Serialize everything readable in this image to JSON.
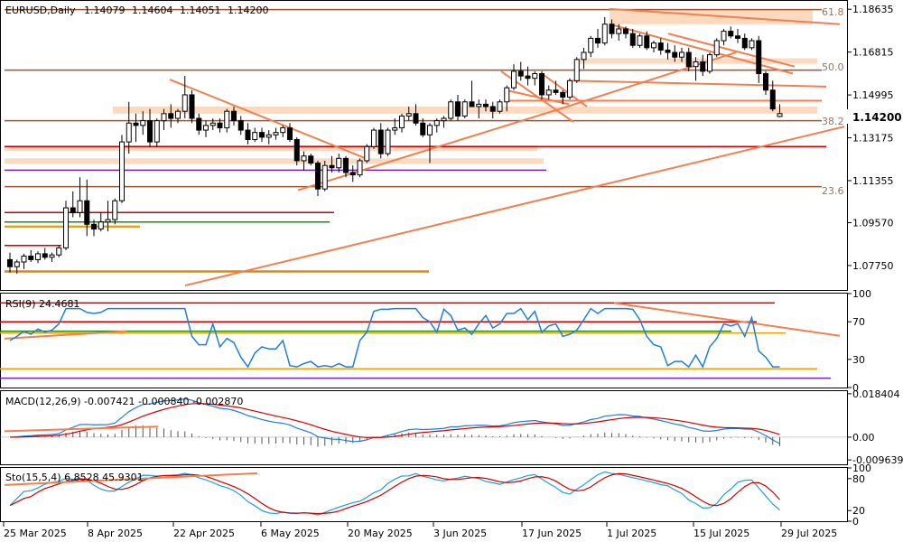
{
  "chart_data": [
    {
      "type": "candlestick",
      "header": {
        "symbol": "EURUSD,Daily",
        "open": "1.14079",
        "high": "1.14604",
        "low": "1.14051",
        "close": "1.14200"
      },
      "y_ticks": [
        "1.18635",
        "1.16815",
        "1.14995",
        "1.13175",
        "1.11355",
        "1.09570",
        "1.07750"
      ],
      "y_range": [
        1.0675,
        1.1895
      ],
      "current_price": "1.14200",
      "fib_labels": [
        "61.8",
        "50.0",
        "38.2",
        "23.6"
      ],
      "x_labels": [
        "25 Mar 2025",
        "8 Apr 2025",
        "22 Apr 2025",
        "6 May 2025",
        "20 May 2025",
        "3 Jun 2025",
        "17 Jun 2025",
        "1 Jul 2025",
        "15 Jul 2025",
        "29 Jul 2025"
      ],
      "candles": [
        [
          1.08,
          1.083,
          1.0745,
          1.077
        ],
        [
          1.077,
          1.08,
          1.074,
          1.079
        ],
        [
          1.079,
          1.0825,
          1.076,
          1.0815
        ],
        [
          1.0815,
          1.084,
          1.079,
          1.08
        ],
        [
          1.08,
          1.0835,
          1.0785,
          1.0825
        ],
        [
          1.0825,
          1.085,
          1.08,
          1.081
        ],
        [
          1.081,
          1.083,
          1.079,
          1.082
        ],
        [
          1.082,
          1.086,
          1.081,
          1.085
        ],
        [
          1.085,
          1.105,
          1.084,
          1.102
        ],
        [
          1.102,
          1.109,
          1.098,
          1.1
        ],
        [
          1.1,
          1.115,
          1.098,
          1.105
        ],
        [
          1.105,
          1.114,
          1.09,
          1.095
        ],
        [
          1.095,
          1.097,
          1.09,
          1.093
        ],
        [
          1.093,
          1.1,
          1.092,
          1.096
        ],
        [
          1.096,
          1.105,
          1.092,
          1.097
        ],
        [
          1.097,
          1.106,
          1.095,
          1.105
        ],
        [
          1.105,
          1.133,
          1.104,
          1.13
        ],
        [
          1.13,
          1.147,
          1.125,
          1.138
        ],
        [
          1.138,
          1.142,
          1.13,
          1.137
        ],
        [
          1.137,
          1.143,
          1.133,
          1.139
        ],
        [
          1.139,
          1.144,
          1.128,
          1.13
        ],
        [
          1.13,
          1.14,
          1.128,
          1.139
        ],
        [
          1.139,
          1.144,
          1.135,
          1.142
        ],
        [
          1.142,
          1.146,
          1.136,
          1.14
        ],
        [
          1.14,
          1.144,
          1.138,
          1.143
        ],
        [
          1.143,
          1.158,
          1.14,
          1.15
        ],
        [
          1.15,
          1.152,
          1.138,
          1.14
        ],
        [
          1.14,
          1.142,
          1.133,
          1.135
        ],
        [
          1.135,
          1.139,
          1.132,
          1.137
        ],
        [
          1.137,
          1.14,
          1.135,
          1.138
        ],
        [
          1.138,
          1.14,
          1.134,
          1.136
        ],
        [
          1.136,
          1.144,
          1.134,
          1.143
        ],
        [
          1.143,
          1.145,
          1.137,
          1.139
        ],
        [
          1.139,
          1.141,
          1.133,
          1.135
        ],
        [
          1.135,
          1.138,
          1.129,
          1.131
        ],
        [
          1.131,
          1.136,
          1.13,
          1.134
        ],
        [
          1.134,
          1.136,
          1.13,
          1.132
        ],
        [
          1.132,
          1.135,
          1.129,
          1.133
        ],
        [
          1.133,
          1.136,
          1.131,
          1.134
        ],
        [
          1.134,
          1.137,
          1.132,
          1.136
        ],
        [
          1.136,
          1.138,
          1.13,
          1.131
        ],
        [
          1.131,
          1.132,
          1.12,
          1.122
        ],
        [
          1.122,
          1.126,
          1.118,
          1.124
        ],
        [
          1.124,
          1.125,
          1.12,
          1.121
        ],
        [
          1.121,
          1.122,
          1.107,
          1.11
        ],
        [
          1.11,
          1.122,
          1.109,
          1.12
        ],
        [
          1.12,
          1.124,
          1.117,
          1.119
        ],
        [
          1.119,
          1.125,
          1.117,
          1.123
        ],
        [
          1.123,
          1.124,
          1.115,
          1.117
        ],
        [
          1.117,
          1.12,
          1.113,
          1.116
        ],
        [
          1.116,
          1.123,
          1.115,
          1.122
        ],
        [
          1.122,
          1.129,
          1.121,
          1.128
        ],
        [
          1.128,
          1.136,
          1.127,
          1.135
        ],
        [
          1.135,
          1.138,
          1.123,
          1.125
        ],
        [
          1.125,
          1.136,
          1.124,
          1.135
        ],
        [
          1.135,
          1.14,
          1.133,
          1.136
        ],
        [
          1.136,
          1.142,
          1.134,
          1.141
        ],
        [
          1.141,
          1.145,
          1.139,
          1.142
        ],
        [
          1.142,
          1.146,
          1.137,
          1.138
        ],
        [
          1.138,
          1.14,
          1.132,
          1.133
        ],
        [
          1.133,
          1.138,
          1.121,
          1.137
        ],
        [
          1.137,
          1.14,
          1.134,
          1.139
        ],
        [
          1.139,
          1.141,
          1.136,
          1.14
        ],
        [
          1.14,
          1.148,
          1.139,
          1.147
        ],
        [
          1.147,
          1.15,
          1.139,
          1.141
        ],
        [
          1.141,
          1.148,
          1.14,
          1.147
        ],
        [
          1.147,
          1.156,
          1.146,
          1.145
        ],
        [
          1.145,
          1.148,
          1.14,
          1.146
        ],
        [
          1.146,
          1.148,
          1.143,
          1.145
        ],
        [
          1.145,
          1.147,
          1.14,
          1.143
        ],
        [
          1.143,
          1.148,
          1.142,
          1.147
        ],
        [
          1.147,
          1.154,
          1.143,
          1.153
        ],
        [
          1.153,
          1.163,
          1.152,
          1.16
        ],
        [
          1.16,
          1.164,
          1.156,
          1.158
        ],
        [
          1.158,
          1.162,
          1.154,
          1.157
        ],
        [
          1.157,
          1.16,
          1.154,
          1.159
        ],
        [
          1.159,
          1.16,
          1.148,
          1.15
        ],
        [
          1.15,
          1.154,
          1.148,
          1.152
        ],
        [
          1.152,
          1.156,
          1.15,
          1.151
        ],
        [
          1.151,
          1.152,
          1.146,
          1.149
        ],
        [
          1.149,
          1.157,
          1.148,
          1.156
        ],
        [
          1.156,
          1.166,
          1.155,
          1.165
        ],
        [
          1.165,
          1.17,
          1.161,
          1.168
        ],
        [
          1.168,
          1.175,
          1.166,
          1.174
        ],
        [
          1.174,
          1.178,
          1.17,
          1.172
        ],
        [
          1.172,
          1.183,
          1.171,
          1.18
        ],
        [
          1.18,
          1.182,
          1.174,
          1.176
        ],
        [
          1.176,
          1.18,
          1.173,
          1.178
        ],
        [
          1.178,
          1.179,
          1.174,
          1.176
        ],
        [
          1.176,
          1.178,
          1.17,
          1.171
        ],
        [
          1.171,
          1.176,
          1.17,
          1.175
        ],
        [
          1.175,
          1.177,
          1.169,
          1.17
        ],
        [
          1.17,
          1.173,
          1.168,
          1.172
        ],
        [
          1.172,
          1.174,
          1.167,
          1.169
        ],
        [
          1.169,
          1.172,
          1.165,
          1.168
        ],
        [
          1.168,
          1.171,
          1.164,
          1.166
        ],
        [
          1.166,
          1.17,
          1.164,
          1.168
        ],
        [
          1.168,
          1.17,
          1.16,
          1.162
        ],
        [
          1.162,
          1.166,
          1.156,
          1.164
        ],
        [
          1.164,
          1.167,
          1.158,
          1.16
        ],
        [
          1.16,
          1.168,
          1.159,
          1.167
        ],
        [
          1.167,
          1.174,
          1.166,
          1.173
        ],
        [
          1.173,
          1.178,
          1.171,
          1.177
        ],
        [
          1.177,
          1.179,
          1.174,
          1.175
        ],
        [
          1.175,
          1.178,
          1.172,
          1.174
        ],
        [
          1.174,
          1.176,
          1.169,
          1.17
        ],
        [
          1.17,
          1.174,
          1.169,
          1.173
        ],
        [
          1.173,
          1.175,
          1.155,
          1.159
        ],
        [
          1.159,
          1.16,
          1.15,
          1.152
        ],
        [
          1.152,
          1.156,
          1.143,
          1.144
        ],
        [
          1.1408,
          1.146,
          1.1405,
          1.142
        ]
      ]
    },
    {
      "type": "line",
      "label": "RSI(9) 24.4681",
      "y_ticks": [
        "100",
        "70",
        "30",
        "0"
      ],
      "y_range": [
        0,
        100
      ]
    },
    {
      "type": "line",
      "label": "MACD(12,26,9) -0.007421 -0.000840 -0.002870",
      "y_ticks": [
        "0.018404",
        "0.00",
        "-0.009639"
      ],
      "y_range": [
        -0.0115,
        0.0195
      ]
    },
    {
      "type": "line",
      "label": "Sto(15,5,4) 6.8528 45.9301",
      "y_ticks": [
        "100",
        "80",
        "20",
        "0"
      ],
      "y_range": [
        0,
        100
      ]
    }
  ]
}
